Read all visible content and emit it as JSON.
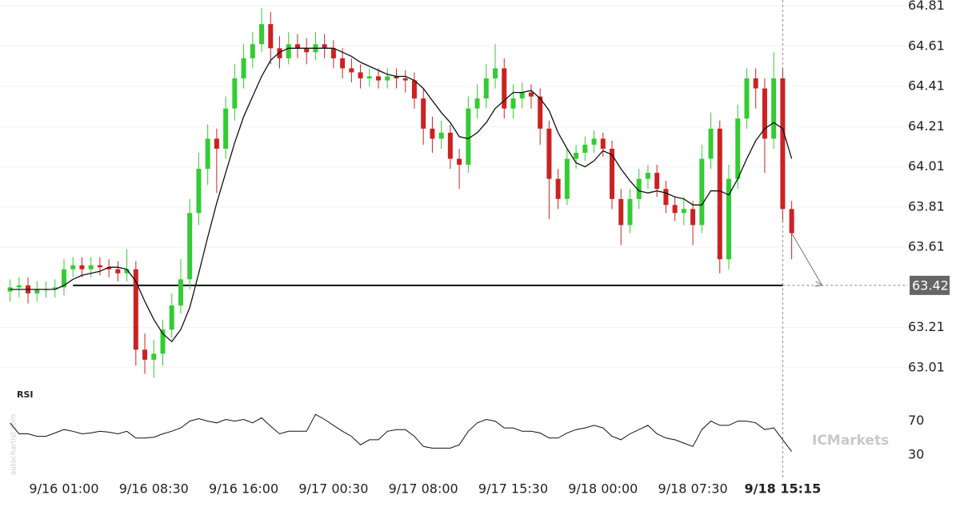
{
  "chart_data": [
    {
      "type": "candlestick",
      "categories": [
        null,
        null,
        null,
        null,
        null,
        null,
        "9/16 01:00",
        null,
        null,
        null,
        null,
        null,
        null,
        null,
        null,
        null,
        "9/16 08:30",
        null,
        null,
        null,
        null,
        null,
        null,
        null,
        null,
        null,
        "9/16 16:00",
        null,
        null,
        null,
        null,
        null,
        null,
        null,
        null,
        null,
        "9/17 00:30",
        null,
        null,
        null,
        null,
        null,
        null,
        null,
        null,
        null,
        "9/17 08:00",
        null,
        null,
        null,
        null,
        null,
        null,
        null,
        null,
        null,
        "9/17 15:30",
        null,
        null,
        null,
        null,
        null,
        null,
        null,
        null,
        null,
        "9/18 00:00",
        null,
        null,
        null,
        null,
        null,
        null,
        null,
        null,
        null,
        "9/18 07:30",
        null,
        null,
        null,
        null,
        null,
        null,
        null,
        null,
        null,
        "9/18 15:15",
        null
      ],
      "open": [
        63.39,
        63.41,
        63.42,
        63.38,
        63.4,
        63.4,
        63.41,
        63.5,
        63.52,
        63.5,
        63.52,
        63.51,
        63.5,
        63.48,
        63.5,
        63.1,
        63.05,
        63.08,
        63.2,
        63.32,
        63.45,
        63.78,
        64.0,
        64.15,
        64.1,
        64.3,
        64.45,
        64.55,
        64.62,
        64.72,
        64.6,
        64.55,
        64.62,
        64.6,
        64.58,
        64.62,
        64.6,
        64.55,
        64.5,
        64.48,
        64.45,
        64.46,
        64.44,
        64.46,
        64.45,
        64.44,
        64.35,
        64.2,
        64.15,
        64.18,
        64.05,
        64.02,
        64.3,
        64.35,
        64.45,
        64.5,
        64.3,
        64.35,
        64.38,
        64.36,
        64.2,
        63.95,
        63.85,
        64.05,
        64.08,
        64.12,
        64.15,
        64.1,
        63.85,
        63.72,
        63.85,
        63.95,
        63.98,
        63.9,
        63.82,
        63.78,
        63.8,
        63.72,
        64.05,
        64.2,
        63.55,
        63.95,
        64.25,
        64.45,
        64.4,
        64.15,
        64.45,
        63.8
      ],
      "high": [
        63.45,
        63.46,
        63.46,
        63.44,
        63.44,
        63.45,
        63.55,
        63.56,
        63.56,
        63.56,
        63.56,
        63.55,
        63.54,
        63.6,
        63.54,
        63.18,
        63.15,
        63.25,
        63.38,
        63.55,
        63.85,
        64.08,
        64.22,
        64.2,
        64.36,
        64.52,
        64.62,
        64.68,
        64.8,
        64.78,
        64.66,
        64.68,
        64.67,
        64.65,
        64.68,
        64.67,
        64.64,
        64.6,
        64.55,
        64.52,
        64.5,
        64.5,
        64.5,
        64.5,
        64.49,
        64.48,
        64.4,
        64.26,
        64.24,
        64.22,
        64.1,
        64.36,
        64.42,
        64.52,
        64.62,
        64.55,
        64.42,
        64.43,
        64.42,
        64.4,
        64.24,
        64.0,
        64.1,
        64.12,
        64.16,
        64.19,
        64.18,
        64.14,
        63.9,
        63.9,
        64.0,
        64.02,
        64.02,
        63.94,
        63.86,
        63.86,
        63.84,
        64.12,
        64.28,
        64.24,
        64.02,
        64.32,
        64.5,
        64.5,
        64.45,
        64.58,
        64.5,
        63.84
      ],
      "low": [
        63.34,
        63.36,
        63.33,
        63.34,
        63.36,
        63.36,
        63.37,
        63.46,
        63.46,
        63.46,
        63.47,
        63.46,
        63.44,
        63.44,
        63.02,
        62.98,
        62.96,
        63.02,
        63.16,
        63.28,
        63.4,
        63.72,
        63.92,
        63.88,
        64.05,
        64.24,
        64.4,
        64.5,
        64.58,
        64.52,
        64.5,
        64.52,
        64.55,
        64.52,
        64.54,
        64.55,
        64.5,
        64.45,
        64.43,
        64.4,
        64.41,
        64.4,
        64.4,
        64.4,
        64.38,
        64.3,
        64.12,
        64.08,
        64.1,
        64.0,
        63.9,
        63.98,
        64.25,
        64.3,
        64.4,
        64.25,
        64.25,
        64.3,
        64.3,
        64.12,
        63.75,
        63.8,
        63.82,
        64.0,
        64.04,
        64.08,
        64.06,
        63.8,
        63.62,
        63.68,
        63.8,
        63.9,
        63.86,
        63.78,
        63.74,
        63.72,
        63.62,
        63.68,
        64.0,
        63.48,
        63.5,
        63.9,
        64.2,
        64.3,
        63.98,
        64.1,
        63.74,
        63.55
      ],
      "close": [
        63.41,
        63.42,
        63.38,
        63.4,
        63.4,
        63.41,
        63.5,
        63.52,
        63.5,
        63.52,
        63.51,
        63.5,
        63.48,
        63.5,
        63.1,
        63.05,
        63.08,
        63.2,
        63.32,
        63.45,
        63.78,
        64.0,
        64.15,
        64.1,
        64.3,
        64.45,
        64.55,
        64.62,
        64.72,
        64.6,
        64.55,
        64.62,
        64.6,
        64.58,
        64.62,
        64.6,
        64.55,
        64.5,
        64.48,
        64.45,
        64.46,
        64.44,
        64.46,
        64.45,
        64.44,
        64.35,
        64.2,
        64.15,
        64.18,
        64.05,
        64.02,
        64.3,
        64.35,
        64.45,
        64.5,
        64.3,
        64.35,
        64.38,
        64.36,
        64.2,
        63.95,
        63.85,
        64.05,
        64.08,
        64.12,
        64.15,
        64.1,
        63.85,
        63.72,
        63.85,
        63.95,
        63.98,
        63.9,
        63.82,
        63.78,
        63.8,
        63.72,
        64.05,
        64.2,
        63.55,
        63.95,
        64.25,
        64.45,
        64.4,
        64.15,
        64.45,
        63.8,
        63.68
      ],
      "up_color": "#33cc33",
      "down_color": "#cc2222",
      "sma": {
        "color": "#111111",
        "values": [
          63.4,
          63.4,
          63.4,
          63.4,
          63.4,
          63.4,
          63.42,
          63.45,
          63.47,
          63.48,
          63.49,
          63.51,
          63.51,
          63.5,
          63.44,
          63.34,
          63.25,
          63.18,
          63.14,
          63.2,
          63.31,
          63.48,
          63.66,
          63.83,
          63.98,
          64.13,
          64.26,
          64.36,
          64.46,
          64.54,
          64.58,
          64.6,
          64.6,
          64.6,
          64.6,
          64.6,
          64.6,
          64.58,
          64.56,
          64.53,
          64.51,
          64.49,
          64.47,
          64.46,
          64.46,
          64.44,
          64.4,
          64.34,
          64.28,
          64.23,
          64.16,
          64.15,
          64.18,
          64.23,
          64.3,
          64.34,
          64.38,
          64.38,
          64.39,
          64.35,
          64.29,
          64.18,
          64.1,
          64.03,
          64.01,
          64.04,
          64.09,
          64.07,
          64.0,
          63.94,
          63.89,
          63.88,
          63.89,
          63.88,
          63.86,
          63.85,
          63.82,
          63.82,
          63.89,
          63.89,
          63.87,
          63.95,
          64.05,
          64.14,
          64.2,
          64.23,
          64.2,
          64.05
        ]
      },
      "level": {
        "value": 63.42,
        "color": "#111111"
      },
      "ylim": [
        62.93,
        64.84
      ],
      "yticks": [
        64.81,
        64.61,
        64.41,
        64.21,
        64.01,
        63.81,
        63.61,
        63.21,
        63.01
      ],
      "grid": true
    },
    {
      "type": "line",
      "title": "RSI",
      "color": "#111111",
      "values": [
        68,
        55,
        55,
        52,
        52,
        56,
        60,
        58,
        55,
        56,
        58,
        57,
        55,
        58,
        50,
        50,
        51,
        55,
        58,
        62,
        70,
        73,
        70,
        68,
        72,
        70,
        72,
        68,
        74,
        64,
        55,
        58,
        58,
        58,
        78,
        72,
        65,
        58,
        52,
        42,
        48,
        48,
        58,
        60,
        60,
        52,
        40,
        38,
        38,
        38,
        42,
        58,
        68,
        72,
        70,
        62,
        62,
        58,
        58,
        56,
        50,
        50,
        56,
        60,
        62,
        65,
        62,
        52,
        48,
        55,
        60,
        65,
        55,
        50,
        48,
        44,
        40,
        60,
        70,
        65,
        65,
        70,
        70,
        68,
        60,
        62,
        48,
        34
      ],
      "ylim": [
        0,
        100
      ],
      "yticks": [
        70,
        30
      ]
    }
  ],
  "watermark": "ICMarkets",
  "source": "autochartist.com"
}
